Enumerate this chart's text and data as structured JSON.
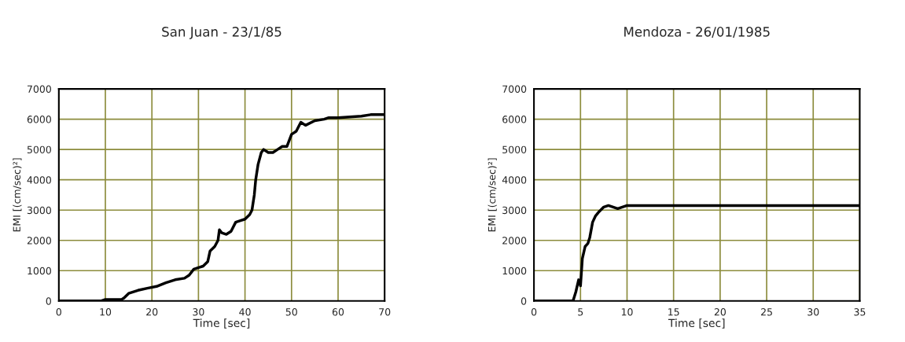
{
  "chart_data": [
    {
      "type": "line",
      "title": "San Juan - 23/1/85",
      "xlabel": "Time [sec]",
      "ylabel": "EMI [(cm/sec)²]",
      "series": [
        {
          "color": "#000000",
          "x": [
            0,
            9,
            10,
            13.5,
            14,
            15,
            17,
            19,
            21,
            23,
            25,
            27,
            28,
            29,
            30,
            31,
            32,
            32.5,
            33.5,
            34.2,
            34.5,
            35,
            36,
            37,
            38,
            39,
            40,
            41,
            41.5,
            42,
            42.3,
            42.8,
            43.5,
            44,
            45,
            46,
            47,
            48,
            49,
            50,
            51,
            52,
            53,
            55,
            57,
            58,
            60,
            65,
            67,
            70
          ],
          "values": [
            0,
            0,
            50,
            50,
            100,
            250,
            350,
            420,
            480,
            600,
            700,
            750,
            850,
            1050,
            1100,
            1150,
            1300,
            1650,
            1800,
            2000,
            2350,
            2250,
            2200,
            2300,
            2600,
            2650,
            2700,
            2850,
            3000,
            3500,
            4000,
            4500,
            4900,
            5000,
            4900,
            4900,
            5000,
            5100,
            5100,
            5500,
            5600,
            5900,
            5800,
            5950,
            6000,
            6050,
            6050,
            6100,
            6150,
            6150
          ]
        }
      ],
      "xlim": [
        0,
        70
      ],
      "xticks": [
        0,
        10,
        20,
        30,
        40,
        50,
        60,
        70
      ],
      "ylim": [
        0,
        7000
      ],
      "yticks": [
        0,
        1000,
        2000,
        3000,
        4000,
        5000,
        6000,
        7000
      ],
      "grid": true
    },
    {
      "type": "line",
      "title": "Mendoza - 26/01/1985",
      "xlabel": "Time [sec]",
      "ylabel": "EMI [(cm/sec)²]",
      "series": [
        {
          "color": "#000000",
          "x": [
            0,
            4.2,
            4.5,
            4.8,
            5,
            5.2,
            5.5,
            5.8,
            6,
            6.3,
            6.6,
            7,
            7.5,
            8,
            8.5,
            9,
            9.5,
            10,
            35
          ],
          "values": [
            0,
            0,
            300,
            700,
            500,
            1400,
            1800,
            1900,
            2100,
            2600,
            2800,
            2950,
            3100,
            3150,
            3100,
            3050,
            3100,
            3150,
            3150
          ]
        }
      ],
      "xlim": [
        0,
        35
      ],
      "xticks": [
        0,
        5,
        10,
        15,
        20,
        25,
        30,
        35
      ],
      "ylim": [
        0,
        7000
      ],
      "yticks": [
        0,
        1000,
        2000,
        3000,
        4000,
        5000,
        6000,
        7000
      ],
      "grid": true
    }
  ]
}
